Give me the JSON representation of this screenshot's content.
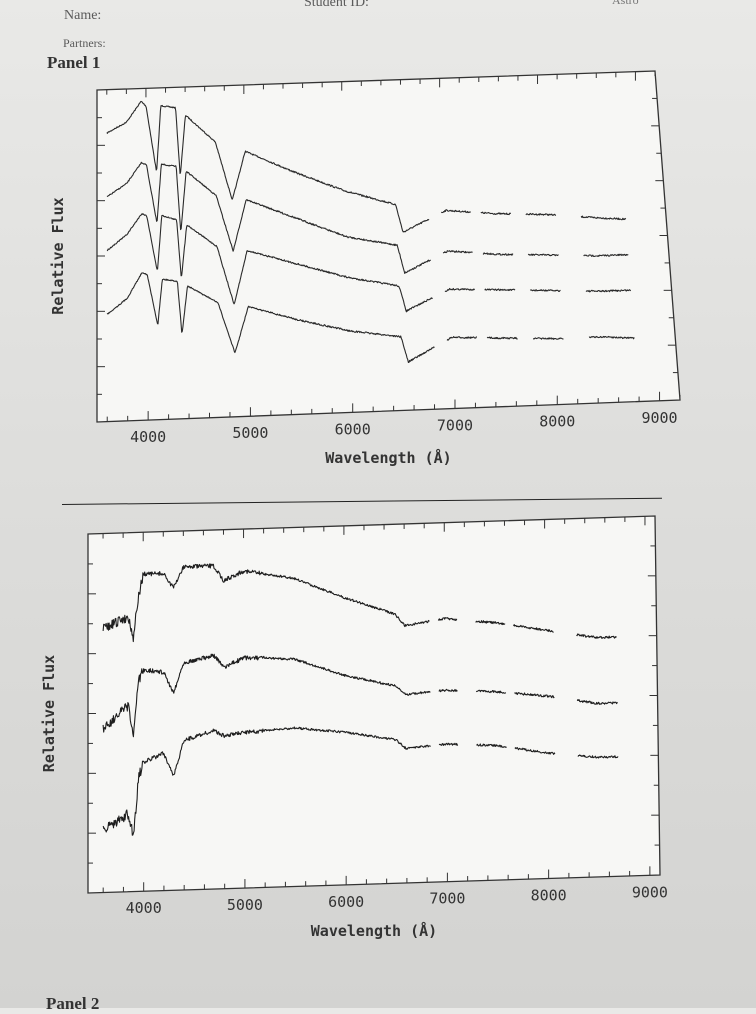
{
  "header": {
    "name_label": "Name:",
    "student_id_label": "Student ID:",
    "partners_label": "Partners:",
    "corner_label": "Astro"
  },
  "panels": {
    "panel1_title": "Panel 1",
    "panel2_title": "Panel 2"
  },
  "chart_data": [
    {
      "type": "line",
      "title": "Panel 1",
      "xlabel": "Wavelength (Å)",
      "ylabel": "Relative Flux",
      "xlim": [
        3500,
        9200
      ],
      "xticks": [
        4000,
        5000,
        6000,
        7000,
        8000,
        9000
      ],
      "grid": false,
      "legend": "none",
      "line_color": "#2a2a2a",
      "series": [
        {
          "x": [
            3600,
            3800,
            3950,
            4000,
            4102,
            4150,
            4300,
            4340,
            4400,
            4700,
            4861,
            5000,
            5500,
            6000,
            6500,
            6563,
            7000,
            7500,
            8000,
            8500,
            8800
          ],
          "y": [
            0.88,
            0.92,
            1.0,
            0.98,
            0.72,
            0.98,
            0.97,
            0.7,
            0.94,
            0.83,
            0.6,
            0.79,
            0.7,
            0.62,
            0.56,
            0.45,
            0.53,
            0.51,
            0.5,
            0.48,
            0.47
          ]
        },
        {
          "x": [
            3600,
            3800,
            3950,
            4000,
            4102,
            4150,
            4300,
            4340,
            4400,
            4700,
            4861,
            5000,
            5500,
            6000,
            6500,
            6563,
            7000,
            7500,
            8000,
            8500,
            8800
          ],
          "y": [
            0.63,
            0.68,
            0.76,
            0.75,
            0.52,
            0.75,
            0.74,
            0.48,
            0.72,
            0.62,
            0.4,
            0.6,
            0.52,
            0.44,
            0.4,
            0.29,
            0.37,
            0.35,
            0.34,
            0.33,
            0.33
          ]
        },
        {
          "x": [
            3600,
            3800,
            3950,
            4000,
            4102,
            4150,
            4300,
            4340,
            4400,
            4700,
            4861,
            5000,
            5500,
            6000,
            6500,
            6563,
            7000,
            7500,
            8000,
            8500,
            8800
          ],
          "y": [
            0.42,
            0.48,
            0.56,
            0.55,
            0.33,
            0.55,
            0.53,
            0.3,
            0.51,
            0.42,
            0.19,
            0.4,
            0.34,
            0.28,
            0.24,
            0.14,
            0.22,
            0.21,
            0.2,
            0.19,
            0.19
          ]
        },
        {
          "x": [
            3600,
            3800,
            3950,
            4000,
            4102,
            4150,
            4300,
            4340,
            4400,
            4700,
            4861,
            5000,
            5500,
            6000,
            6500,
            6563,
            7000,
            7500,
            8000,
            8500,
            8800
          ],
          "y": [
            0.17,
            0.23,
            0.33,
            0.32,
            0.12,
            0.3,
            0.29,
            0.08,
            0.27,
            0.2,
            0.0,
            0.18,
            0.12,
            0.07,
            0.04,
            -0.06,
            0.03,
            0.02,
            0.01,
            0.01,
            0.0
          ]
        }
      ]
    },
    {
      "type": "line",
      "title": "Panel 2",
      "xlabel": "Wavelength (Å)",
      "ylabel": "Relative Flux",
      "xlim": [
        3450,
        9100
      ],
      "xticks": [
        4000,
        5000,
        6000,
        7000,
        8000,
        9000
      ],
      "grid": false,
      "legend": "none",
      "line_color": "#1e1e1e",
      "series": [
        {
          "x": [
            3600,
            3850,
            3900,
            3950,
            4000,
            4200,
            4300,
            4400,
            4700,
            4800,
            5000,
            5500,
            6000,
            6500,
            6600,
            7000,
            7500,
            8000,
            8500,
            8700
          ],
          "y": [
            0.8,
            0.84,
            0.77,
            0.9,
            0.98,
            0.98,
            0.93,
            1.0,
            1.0,
            0.95,
            0.98,
            0.95,
            0.88,
            0.82,
            0.78,
            0.8,
            0.78,
            0.75,
            0.72,
            0.72
          ]
        },
        {
          "x": [
            3600,
            3850,
            3900,
            3950,
            4000,
            4200,
            4300,
            4400,
            4700,
            4800,
            5000,
            5500,
            6000,
            6500,
            6600,
            7000,
            7500,
            8000,
            8500,
            8700
          ],
          "y": [
            0.47,
            0.54,
            0.44,
            0.62,
            0.66,
            0.65,
            0.58,
            0.68,
            0.7,
            0.66,
            0.69,
            0.68,
            0.62,
            0.58,
            0.55,
            0.56,
            0.55,
            0.53,
            0.5,
            0.5
          ]
        },
        {
          "x": [
            3600,
            3850,
            3900,
            3950,
            4000,
            4200,
            4300,
            4400,
            4700,
            4800,
            5000,
            5500,
            6000,
            6500,
            6600,
            7000,
            7500,
            8000,
            8500,
            8700
          ],
          "y": [
            0.13,
            0.18,
            0.1,
            0.3,
            0.35,
            0.38,
            0.3,
            0.42,
            0.45,
            0.43,
            0.44,
            0.45,
            0.43,
            0.4,
            0.37,
            0.38,
            0.37,
            0.34,
            0.32,
            0.32
          ]
        }
      ]
    }
  ]
}
